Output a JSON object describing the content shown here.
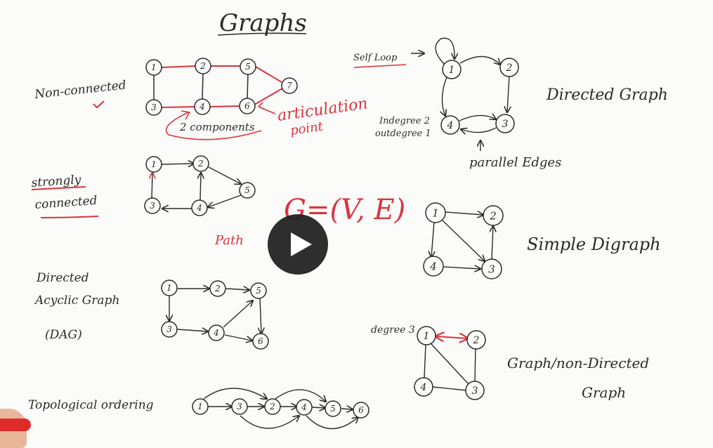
{
  "title": "Graphs",
  "equation": "G=(V, E)",
  "sections": {
    "non_connected": {
      "label": "Non-connected",
      "components_note": "2 components",
      "articulation_note": [
        "articulation",
        "point"
      ],
      "nodes": [
        "1",
        "2",
        "5",
        "7",
        "3",
        "4",
        "6"
      ]
    },
    "strongly_connected": {
      "label": [
        "strongly",
        "connected"
      ],
      "path_note": "Path",
      "nodes": [
        "1",
        "2",
        "5",
        "3",
        "4"
      ]
    },
    "dag": {
      "label": [
        "Directed",
        "Acyclic Graph",
        "(DAG)"
      ],
      "nodes": [
        "1",
        "2",
        "5",
        "3",
        "4",
        "6"
      ]
    },
    "topological": {
      "label": "Topological ordering",
      "nodes": [
        "1",
        "3",
        "2",
        "4",
        "5",
        "6"
      ]
    },
    "directed_graph": {
      "label": "Directed Graph",
      "self_loop": "Self Loop",
      "indegree": "Indegree 2",
      "outdegree": "outdegree 1",
      "parallel_edges": "parallel Edges",
      "nodes": [
        "1",
        "2",
        "4",
        "3"
      ]
    },
    "simple_digraph": {
      "label": "Simple Digraph",
      "nodes": [
        "1",
        "2",
        "4",
        "3"
      ]
    },
    "undirected": {
      "label": [
        "Graph/non-Directed",
        "Graph"
      ],
      "degree_note": "degree 3",
      "nodes": [
        "1",
        "2",
        "4",
        "3"
      ]
    }
  },
  "video": {
    "play_label": "Play",
    "icon": "play-icon"
  }
}
